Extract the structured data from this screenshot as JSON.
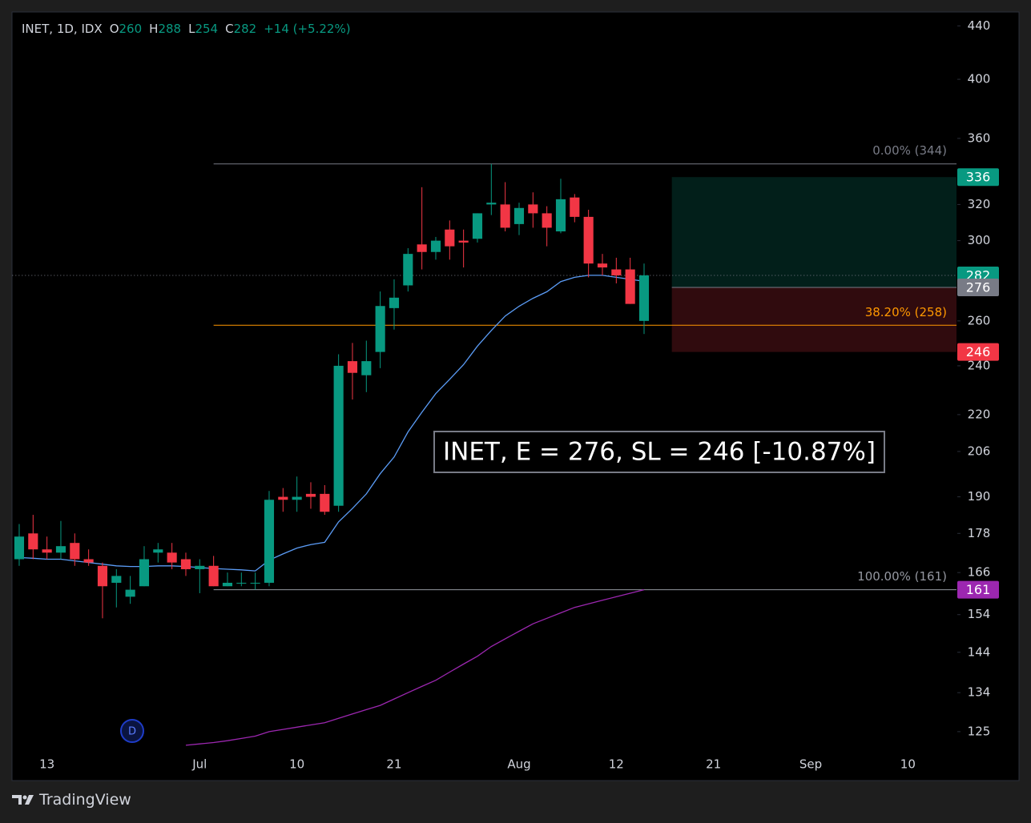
{
  "chart_data": {
    "type": "candlestick",
    "title": "INET, 1D, IDX",
    "ohlc_labels": [
      "O",
      "H",
      "L",
      "C"
    ],
    "ohlc_values": [
      260,
      288,
      254,
      282
    ],
    "change": "+14 (+5.22%)",
    "categories": [
      null,
      null,
      "13",
      null,
      null,
      null,
      null,
      null,
      null,
      null,
      null,
      null,
      null,
      "Jul",
      null,
      null,
      null,
      null,
      null,
      null,
      "10",
      null,
      null,
      null,
      null,
      null,
      null,
      "21",
      null,
      null,
      null,
      null,
      null,
      null,
      null,
      null,
      "Aug",
      null,
      null,
      null,
      null,
      null,
      null,
      "12",
      null,
      null,
      null,
      null,
      null,
      null,
      "21",
      null,
      null,
      null,
      null,
      null,
      null,
      "Sep",
      null,
      null,
      null,
      null,
      null,
      null,
      "10",
      null,
      null,
      null
    ],
    "open": [
      170,
      178,
      173,
      172,
      175,
      170,
      168,
      163,
      159,
      162,
      172,
      172,
      170,
      167,
      168,
      162,
      163,
      163,
      163,
      190,
      189,
      191,
      191,
      187,
      242,
      236,
      246,
      266,
      277,
      298,
      294,
      306,
      300,
      301,
      320,
      320,
      309,
      320,
      315,
      305,
      324,
      313,
      288,
      285,
      285,
      260,
      null,
      null,
      null,
      null,
      null,
      null,
      null,
      null,
      null,
      null,
      null,
      null,
      null,
      null,
      null,
      null,
      null,
      null,
      null,
      null,
      null,
      null
    ],
    "high": [
      181,
      184,
      177,
      182,
      178,
      173,
      169,
      167,
      165,
      174,
      175,
      175,
      172,
      170,
      171,
      166,
      166,
      166,
      192,
      193,
      197,
      195,
      194,
      245,
      250,
      251,
      274,
      280,
      296,
      330,
      302,
      311,
      306,
      315,
      344,
      333,
      321,
      327,
      319,
      335,
      326,
      317,
      293,
      291,
      291,
      288,
      null,
      null,
      null,
      null,
      null,
      null,
      null,
      null,
      null,
      null,
      null,
      null,
      null,
      null,
      null,
      null,
      null,
      null,
      null,
      null,
      null,
      null
    ],
    "low": [
      168,
      170,
      170,
      170,
      168,
      168,
      153,
      156,
      157,
      162,
      169,
      167,
      165,
      160,
      162,
      162,
      162,
      161,
      162,
      185,
      185,
      186,
      184,
      185,
      226,
      229,
      239,
      256,
      274,
      285,
      290,
      290,
      286,
      299,
      314,
      305,
      303,
      307,
      297,
      304,
      310,
      281,
      282,
      278,
      268,
      254,
      null,
      null,
      null,
      null,
      null,
      null,
      null,
      null,
      null,
      null,
      null,
      null,
      null,
      null,
      null,
      null,
      null,
      null,
      null,
      null,
      null,
      null
    ],
    "close": [
      177,
      173,
      172,
      174,
      170,
      169,
      162,
      165,
      161,
      170,
      173,
      169,
      167,
      168,
      162,
      163,
      163,
      163,
      189,
      189,
      190,
      190,
      185,
      240,
      237,
      242,
      267,
      271,
      293,
      294,
      300,
      297,
      299,
      315,
      321,
      307,
      318,
      315,
      307,
      323,
      313,
      288,
      286,
      282,
      268,
      282,
      null,
      null,
      null,
      null,
      null,
      null,
      null,
      null,
      null,
      null,
      null,
      null,
      null,
      null,
      null,
      null,
      null,
      null,
      null,
      null,
      null,
      null
    ],
    "colors": {
      "up": "#089981",
      "down": "#f23645"
    },
    "series": [
      {
        "color": "#5b9cf6",
        "values": [
          170.5,
          170.3,
          170,
          170,
          169.5,
          169,
          168.5,
          168,
          167.8,
          167.8,
          168,
          168,
          167.8,
          167.5,
          167.2,
          167,
          166.8,
          166.5,
          169.7,
          171.6,
          173.4,
          174.5,
          175.2,
          181.7,
          186.1,
          191,
          198,
          204,
          213.3,
          220.9,
          228.4,
          234.3,
          240.5,
          248.6,
          255.6,
          262.3,
          266.9,
          270.7,
          273.9,
          278.9,
          281,
          282,
          282,
          281,
          280,
          279,
          null,
          null,
          null,
          null,
          null,
          null,
          null,
          null,
          null,
          null,
          null,
          null,
          null,
          null,
          null,
          null,
          null,
          null,
          null,
          null,
          null,
          null
        ]
      },
      {
        "color": "#9c27b0",
        "values": [
          null,
          null,
          null,
          null,
          null,
          null,
          null,
          null,
          null,
          null,
          null,
          null,
          122,
          122.3,
          122.6,
          123,
          123.5,
          124,
          125,
          125.5,
          126,
          126.5,
          127,
          128,
          129,
          130,
          131,
          132.5,
          134,
          135.5,
          137,
          139,
          141,
          143,
          145.5,
          147.5,
          149.5,
          151.5,
          153,
          154.5,
          156,
          157,
          158,
          159,
          160,
          161,
          null,
          null,
          null,
          null,
          null,
          null,
          null,
          null,
          null,
          null,
          null,
          null,
          null,
          null,
          null,
          null,
          null,
          null,
          null,
          null,
          null,
          null
        ]
      }
    ],
    "log_scale": true,
    "grid": false,
    "ylim": [
      120.6,
      451
    ],
    "yticks": [
      125,
      134,
      144,
      154,
      166,
      178,
      190,
      206,
      220,
      240,
      260,
      300,
      320,
      360,
      400,
      440
    ],
    "fib_levels": [
      {
        "label": "0.00% (344)",
        "value": 344,
        "color": "#787b86"
      },
      {
        "label": "38.20% (258)",
        "value": 258,
        "color": "#ff9800"
      },
      {
        "label": "100.00% (161)",
        "value": 161,
        "color": "#9598a1"
      }
    ],
    "position": {
      "target": 336,
      "entry": 276,
      "stop": 246,
      "target_color": "#089981",
      "entry_color": "#787b86",
      "stop_color": "#f23645",
      "fib_tag_color": "#9c27b0"
    },
    "annotation": "INET, E = 276, SL = 246 [-10.87%]",
    "dividend_marker": "D",
    "brand": "TradingView"
  }
}
